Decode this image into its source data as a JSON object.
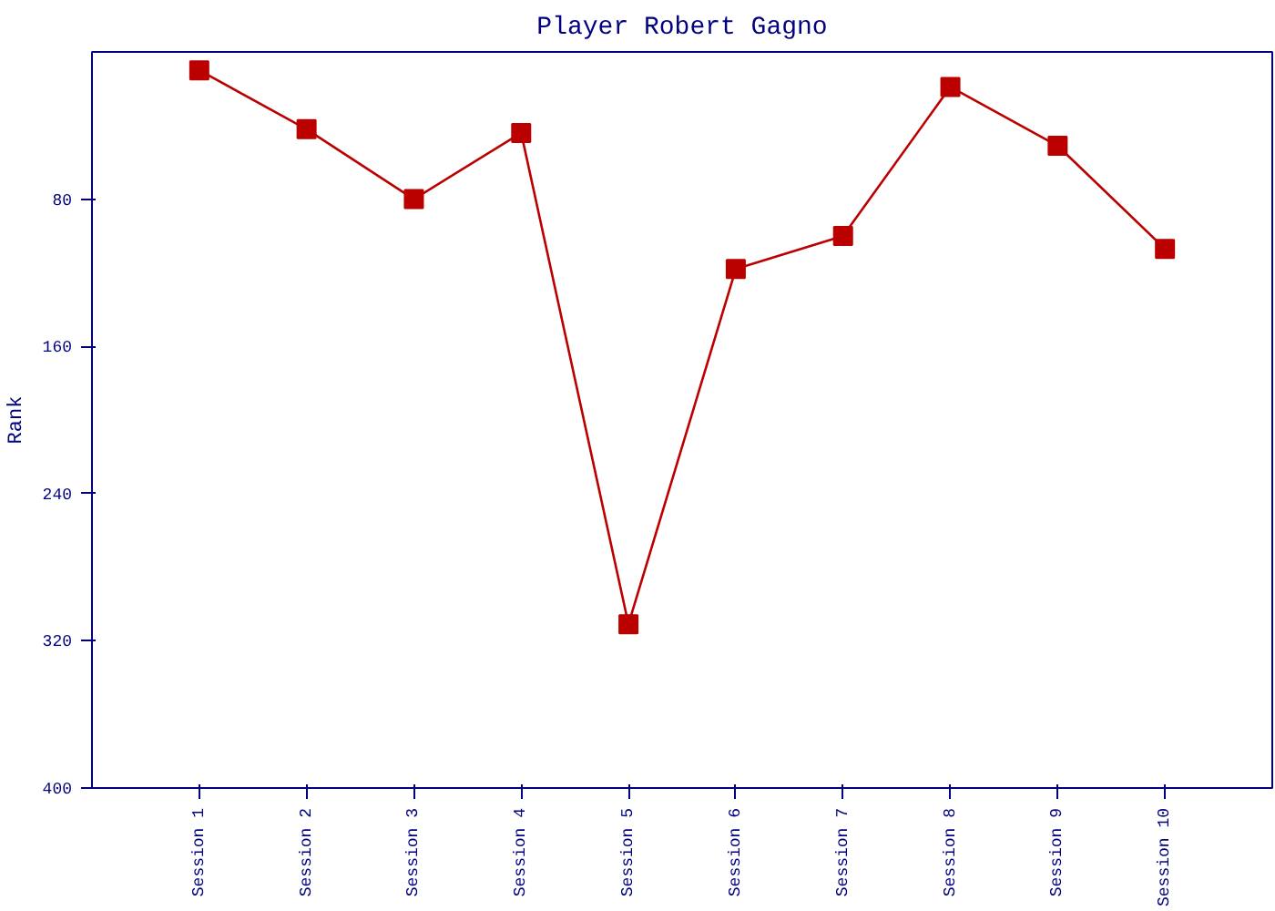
{
  "chart_data": {
    "type": "line",
    "title": "Player Robert Gagno",
    "ylabel": "Rank",
    "categories": [
      "Session 1",
      "Session 2",
      "Session 3",
      "Session 4",
      "Session 5",
      "Session 6",
      "Session 7",
      "Session 8",
      "Session 9",
      "Session 10"
    ],
    "series": [
      {
        "color": "#bb0000",
        "values": [
          10,
          42,
          80,
          44,
          311,
          118,
          100,
          19,
          51,
          107
        ]
      }
    ],
    "ylim": [
      400,
      0
    ],
    "yticks": [
      80,
      160,
      240,
      320,
      400
    ],
    "grid": false,
    "marker": "square",
    "line_style": "solid"
  }
}
